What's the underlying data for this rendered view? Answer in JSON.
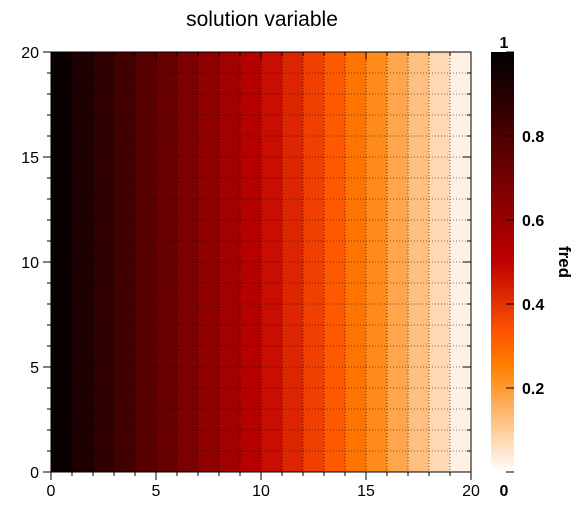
{
  "chart_data": {
    "type": "heatmap",
    "title": "solution variable",
    "xlabel": "",
    "ylabel": "",
    "xlim": [
      0,
      20
    ],
    "ylim": [
      0,
      20
    ],
    "x_ticks": [
      "0",
      "5",
      "10",
      "15",
      "20"
    ],
    "y_ticks": [
      "0",
      "5",
      "10",
      "15",
      "20"
    ],
    "grid": true,
    "colormap": "gist_heat_reversed",
    "cells_x": 20,
    "cells_y": 20,
    "column_values": [
      0.975,
      0.925,
      0.875,
      0.825,
      0.775,
      0.725,
      0.675,
      0.625,
      0.575,
      0.525,
      0.475,
      0.425,
      0.375,
      0.325,
      0.275,
      0.225,
      0.175,
      0.125,
      0.075,
      0.025
    ],
    "colorbar": {
      "label": "fred",
      "min": 0,
      "max": 1,
      "ticks": [
        "0",
        "0.2",
        "0.4",
        "0.6",
        "0.8",
        "1"
      ],
      "tick_values": [
        0,
        0.2,
        0.4,
        0.6,
        0.8,
        1
      ]
    }
  }
}
